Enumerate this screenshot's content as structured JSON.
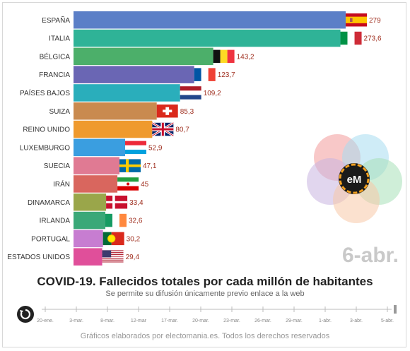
{
  "chart_data": {
    "type": "bar",
    "orientation": "horizontal",
    "title": "COVID-19. Fallecidos totales por cada millón de habitantes",
    "subtitle": "Se permite su difusión únicamente previo enlace a la web",
    "current_date": "6-abr.",
    "categories": [
      "ESPAÑA",
      "ITALIA",
      "BÉLGICA",
      "FRANCIA",
      "PAÍSES BAJOS",
      "SUIZA",
      "REINO UNIDO",
      "LUXEMBURGO",
      "SUECIA",
      "IRÁN",
      "DINAMARCA",
      "IRLANDA",
      "PORTUGAL",
      "ESTADOS UNIDOS"
    ],
    "values": [
      279,
      273.6,
      143.2,
      123.7,
      109.2,
      85.3,
      80.7,
      52.9,
      47.1,
      45,
      33.4,
      32.6,
      30.2,
      29.4
    ],
    "value_labels": [
      "279",
      "273,6",
      "143,2",
      "123,7",
      "109,2",
      "85,3",
      "80,7",
      "52,9",
      "47,1",
      "45",
      "33,4",
      "32,6",
      "30,2",
      "29,4"
    ],
    "colors": [
      "#5b7fc7",
      "#2fb397",
      "#4caf6a",
      "#6a66b4",
      "#2aaebb",
      "#c98a4f",
      "#ef9a2e",
      "#3a9ee0",
      "#e07a93",
      "#d9665e",
      "#9aa64a",
      "#3aa878",
      "#c77dd1",
      "#e04f9a"
    ],
    "flags": [
      "spain-flag",
      "italy-flag",
      "belgium-flag",
      "france-flag",
      "netherlands-flag",
      "switzerland-flag",
      "uk-flag",
      "luxembourg-flag",
      "sweden-flag",
      "iran-flag",
      "denmark-flag",
      "ireland-flag",
      "portugal-flag",
      "usa-flag"
    ],
    "xlim": [
      0,
      279
    ],
    "timeline_ticks": [
      "20-ene.",
      "3-mar.",
      "8-mar.",
      "12-mar",
      "17-mar.",
      "20-mar.",
      "23-mar.",
      "26-mar.",
      "29-mar.",
      "1-abr.",
      "3-abr.",
      "5-abr."
    ],
    "value_label_color": "#a03020"
  },
  "footer": "Gráficos elaborados por electomania.es. Todos los derechos reservados",
  "logo_text": "eM"
}
